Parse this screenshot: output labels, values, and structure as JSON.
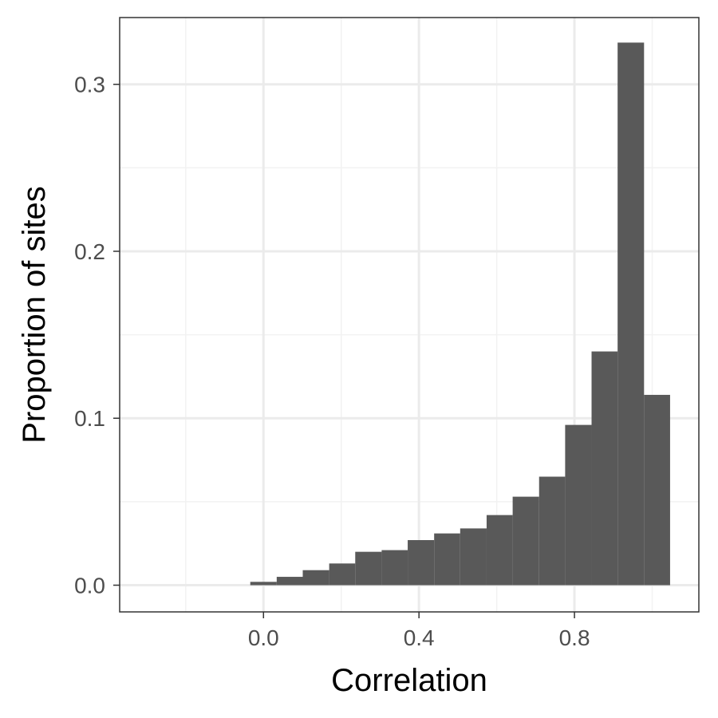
{
  "chart_data": {
    "type": "bar",
    "xlabel": "Correlation",
    "ylabel": "Proportion of sites",
    "xlim": [
      -0.37,
      1.12
    ],
    "ylim": [
      -0.016,
      0.34
    ],
    "x_ticks": [
      {
        "value": 0.0,
        "label": "0.0"
      },
      {
        "value": 0.4,
        "label": "0.4"
      },
      {
        "value": 0.8,
        "label": "0.8"
      }
    ],
    "y_ticks": [
      {
        "value": 0.0,
        "label": "0.0"
      },
      {
        "value": 0.1,
        "label": "0.1"
      },
      {
        "value": 0.2,
        "label": "0.2"
      },
      {
        "value": 0.3,
        "label": "0.3"
      }
    ],
    "x_minor_breaks": [
      -0.2,
      0.2,
      0.6,
      1.0
    ],
    "y_minor_breaks": [
      0.05,
      0.15,
      0.25
    ],
    "bins": [
      {
        "x0": -0.034,
        "x1": 0.034,
        "value": 0.002
      },
      {
        "x0": 0.034,
        "x1": 0.101,
        "value": 0.005
      },
      {
        "x0": 0.101,
        "x1": 0.169,
        "value": 0.009
      },
      {
        "x0": 0.169,
        "x1": 0.236,
        "value": 0.013
      },
      {
        "x0": 0.236,
        "x1": 0.304,
        "value": 0.02
      },
      {
        "x0": 0.304,
        "x1": 0.371,
        "value": 0.021
      },
      {
        "x0": 0.371,
        "x1": 0.439,
        "value": 0.027
      },
      {
        "x0": 0.439,
        "x1": 0.506,
        "value": 0.031
      },
      {
        "x0": 0.506,
        "x1": 0.574,
        "value": 0.034
      },
      {
        "x0": 0.574,
        "x1": 0.641,
        "value": 0.042
      },
      {
        "x0": 0.641,
        "x1": 0.709,
        "value": 0.053
      },
      {
        "x0": 0.709,
        "x1": 0.776,
        "value": 0.065
      },
      {
        "x0": 0.776,
        "x1": 0.844,
        "value": 0.096
      },
      {
        "x0": 0.844,
        "x1": 0.911,
        "value": 0.14
      },
      {
        "x0": 0.911,
        "x1": 0.979,
        "value": 0.325
      },
      {
        "x0": 0.979,
        "x1": 1.046,
        "value": 0.114
      }
    ],
    "grid": true,
    "colors": {
      "bar": "#595959",
      "grid_major": "#ebebeb",
      "grid_minor": "#f2f2f2",
      "panel_border": "#333333"
    }
  }
}
